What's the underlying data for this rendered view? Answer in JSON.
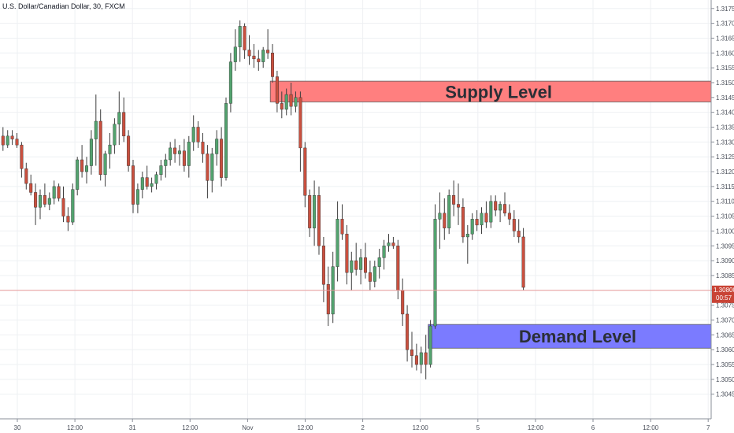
{
  "header": {
    "title": "U.S. Dollar/Canadian Dollar, 30, FXCM"
  },
  "colors": {
    "up": "#53a36f",
    "down": "#c9503f",
    "wick": "#3d3d3d",
    "supply_fill": "#ff7f7f",
    "demand_fill": "#7b7bff",
    "price_line": "#e89a9a",
    "price_badge": "#c94436"
  },
  "chart_data": {
    "type": "candlestick",
    "ylim": [
      1.3042,
      1.3176
    ],
    "y_ticks": [
      "1.31750",
      "1.31700",
      "1.31650",
      "1.31600",
      "1.31550",
      "1.31500",
      "1.31450",
      "1.31400",
      "1.31350",
      "1.31300",
      "1.31250",
      "1.31200",
      "1.31150",
      "1.31100",
      "1.31050",
      "1.31000",
      "1.30950",
      "1.30900",
      "1.30850",
      "1.30800",
      "1.30750",
      "1.30700",
      "1.30650",
      "1.30600",
      "1.30550",
      "1.30500",
      "1.30450"
    ],
    "x_ticks": [
      "30",
      "12:00",
      "31",
      "12:00",
      "Nov",
      "12:00",
      "2",
      "12:00",
      "5",
      "12:00",
      "6",
      "12:00",
      "7"
    ],
    "current_price": {
      "value": 1.308,
      "label": "1.30800",
      "countdown": "00:57"
    },
    "zones": [
      {
        "name": "supply",
        "label": "Supply Level",
        "from": 1.31435,
        "to": 1.31505
      },
      {
        "name": "demand",
        "label": "Demand Level",
        "from": 1.30605,
        "to": 1.30685
      }
    ],
    "candles": [
      [
        1.3132,
        1.3135,
        1.3127,
        1.3129
      ],
      [
        1.3129,
        1.3134,
        1.3128,
        1.3132
      ],
      [
        1.3132,
        1.3134,
        1.3129,
        1.3131
      ],
      [
        1.3131,
        1.3133,
        1.3128,
        1.3129
      ],
      [
        1.3129,
        1.313,
        1.3118,
        1.3121
      ],
      [
        1.3121,
        1.3123,
        1.3114,
        1.3116
      ],
      [
        1.3116,
        1.3119,
        1.3112,
        1.3113
      ],
      [
        1.3113,
        1.3116,
        1.3102,
        1.3108
      ],
      [
        1.3108,
        1.3114,
        1.3104,
        1.3112
      ],
      [
        1.3112,
        1.3116,
        1.3108,
        1.3109
      ],
      [
        1.3109,
        1.3113,
        1.3107,
        1.3111
      ],
      [
        1.3111,
        1.3117,
        1.3109,
        1.3115
      ],
      [
        1.3115,
        1.3116,
        1.311,
        1.3111
      ],
      [
        1.3111,
        1.3115,
        1.3103,
        1.3105
      ],
      [
        1.3105,
        1.3108,
        1.31,
        1.3103
      ],
      [
        1.3103,
        1.3116,
        1.3102,
        1.3114
      ],
      [
        1.3114,
        1.3125,
        1.3112,
        1.3124
      ],
      [
        1.3124,
        1.3129,
        1.3118,
        1.312
      ],
      [
        1.312,
        1.3125,
        1.3116,
        1.3122
      ],
      [
        1.3122,
        1.3134,
        1.3119,
        1.3131
      ],
      [
        1.3131,
        1.3146,
        1.3122,
        1.3137
      ],
      [
        1.3137,
        1.3141,
        1.3117,
        1.3119
      ],
      [
        1.3119,
        1.3127,
        1.3115,
        1.3126
      ],
      [
        1.3126,
        1.3133,
        1.3121,
        1.3129
      ],
      [
        1.3129,
        1.3138,
        1.3126,
        1.3136
      ],
      [
        1.3136,
        1.3147,
        1.3129,
        1.314
      ],
      [
        1.314,
        1.3145,
        1.313,
        1.3132
      ],
      [
        1.3132,
        1.3134,
        1.312,
        1.3122
      ],
      [
        1.3122,
        1.3124,
        1.3106,
        1.3109
      ],
      [
        1.3109,
        1.3116,
        1.3106,
        1.3114
      ],
      [
        1.3114,
        1.312,
        1.3111,
        1.3118
      ],
      [
        1.3118,
        1.3122,
        1.3114,
        1.3115
      ],
      [
        1.3115,
        1.3118,
        1.3113,
        1.3116
      ],
      [
        1.3116,
        1.312,
        1.3114,
        1.3119
      ],
      [
        1.3119,
        1.3124,
        1.3117,
        1.3122
      ],
      [
        1.3122,
        1.3126,
        1.3118,
        1.3124
      ],
      [
        1.3124,
        1.313,
        1.3122,
        1.3128
      ],
      [
        1.3128,
        1.3131,
        1.3123,
        1.3126
      ],
      [
        1.3126,
        1.3129,
        1.3122,
        1.3127
      ],
      [
        1.3127,
        1.3131,
        1.312,
        1.3122
      ],
      [
        1.3122,
        1.3132,
        1.3118,
        1.313
      ],
      [
        1.313,
        1.3139,
        1.3127,
        1.3135
      ],
      [
        1.3135,
        1.3137,
        1.3128,
        1.313
      ],
      [
        1.313,
        1.3133,
        1.3123,
        1.3126
      ],
      [
        1.3126,
        1.3129,
        1.3111,
        1.3117
      ],
      [
        1.3117,
        1.3128,
        1.3113,
        1.3126
      ],
      [
        1.3126,
        1.3134,
        1.3122,
        1.3131
      ],
      [
        1.3131,
        1.3135,
        1.3115,
        1.3118
      ],
      [
        1.3118,
        1.3145,
        1.3117,
        1.3143
      ],
      [
        1.3143,
        1.316,
        1.314,
        1.3157
      ],
      [
        1.3157,
        1.3168,
        1.3154,
        1.3162
      ],
      [
        1.3162,
        1.3171,
        1.3157,
        1.3169
      ],
      [
        1.3169,
        1.317,
        1.3158,
        1.3161
      ],
      [
        1.3161,
        1.3166,
        1.3156,
        1.3159
      ],
      [
        1.3159,
        1.3163,
        1.3155,
        1.3158
      ],
      [
        1.3158,
        1.3161,
        1.3154,
        1.3157
      ],
      [
        1.3157,
        1.3162,
        1.3155,
        1.3161
      ],
      [
        1.3161,
        1.3168,
        1.3158,
        1.316
      ],
      [
        1.316,
        1.3163,
        1.315,
        1.3152
      ],
      [
        1.3152,
        1.3154,
        1.314,
        1.3143
      ],
      [
        1.3143,
        1.3147,
        1.3138,
        1.3141
      ],
      [
        1.3141,
        1.3148,
        1.3139,
        1.3146
      ],
      [
        1.3146,
        1.315,
        1.3139,
        1.3142
      ],
      [
        1.3142,
        1.3147,
        1.314,
        1.3145
      ],
      [
        1.3145,
        1.3147,
        1.312,
        1.3128
      ],
      [
        1.3128,
        1.313,
        1.3108,
        1.3112
      ],
      [
        1.3112,
        1.3114,
        1.3098,
        1.3101
      ],
      [
        1.3101,
        1.3117,
        1.3095,
        1.3112
      ],
      [
        1.3112,
        1.3115,
        1.3092,
        1.3095
      ],
      [
        1.3095,
        1.3098,
        1.3076,
        1.3082
      ],
      [
        1.3082,
        1.3088,
        1.3068,
        1.3072
      ],
      [
        1.3072,
        1.3093,
        1.3069,
        1.3088
      ],
      [
        1.3088,
        1.311,
        1.3083,
        1.3104
      ],
      [
        1.3104,
        1.3109,
        1.3097,
        1.3099
      ],
      [
        1.3099,
        1.3102,
        1.3082,
        1.3086
      ],
      [
        1.3086,
        1.3093,
        1.308,
        1.309
      ],
      [
        1.309,
        1.3096,
        1.3085,
        1.3087
      ],
      [
        1.3087,
        1.3094,
        1.3082,
        1.3091
      ],
      [
        1.3091,
        1.3096,
        1.3084,
        1.3086
      ],
      [
        1.3086,
        1.309,
        1.308,
        1.3083
      ],
      [
        1.3083,
        1.309,
        1.3081,
        1.3088
      ],
      [
        1.3088,
        1.3094,
        1.3084,
        1.3091
      ],
      [
        1.3091,
        1.3097,
        1.3087,
        1.3095
      ],
      [
        1.3095,
        1.3099,
        1.3093,
        1.3096
      ],
      [
        1.3096,
        1.3098,
        1.3094,
        1.3095
      ],
      [
        1.3095,
        1.3097,
        1.3077,
        1.308
      ],
      [
        1.308,
        1.3084,
        1.3068,
        1.3072
      ],
      [
        1.3072,
        1.3075,
        1.3056,
        1.306
      ],
      [
        1.306,
        1.3066,
        1.3054,
        1.3058
      ],
      [
        1.3058,
        1.3062,
        1.3053,
        1.3055
      ],
      [
        1.3055,
        1.3061,
        1.3052,
        1.3059
      ],
      [
        1.3059,
        1.3065,
        1.305,
        1.3055
      ],
      [
        1.3055,
        1.307,
        1.3054,
        1.3068
      ],
      [
        1.3068,
        1.3109,
        1.3067,
        1.3104
      ],
      [
        1.3104,
        1.3113,
        1.3094,
        1.3106
      ],
      [
        1.3106,
        1.3111,
        1.3097,
        1.3101
      ],
      [
        1.3101,
        1.3114,
        1.3099,
        1.3112
      ],
      [
        1.3112,
        1.3117,
        1.3105,
        1.3109
      ],
      [
        1.3109,
        1.3116,
        1.3102,
        1.3108
      ],
      [
        1.3108,
        1.3111,
        1.3096,
        1.3098
      ],
      [
        1.3098,
        1.3102,
        1.3089,
        1.3099
      ],
      [
        1.3099,
        1.3106,
        1.3097,
        1.3104
      ],
      [
        1.3104,
        1.3107,
        1.31,
        1.3102
      ],
      [
        1.3102,
        1.3108,
        1.3099,
        1.3106
      ],
      [
        1.3106,
        1.311,
        1.3101,
        1.3103
      ],
      [
        1.3103,
        1.3112,
        1.3101,
        1.311
      ],
      [
        1.311,
        1.3112,
        1.3105,
        1.3107
      ],
      [
        1.3107,
        1.311,
        1.3103,
        1.3109
      ],
      [
        1.3109,
        1.3113,
        1.3105,
        1.3106
      ],
      [
        1.3106,
        1.3109,
        1.3102,
        1.3104
      ],
      [
        1.3104,
        1.3107,
        1.3098,
        1.31
      ],
      [
        1.31,
        1.3104,
        1.3096,
        1.3098
      ],
      [
        1.3098,
        1.3101,
        1.308,
        1.3081
      ]
    ]
  }
}
